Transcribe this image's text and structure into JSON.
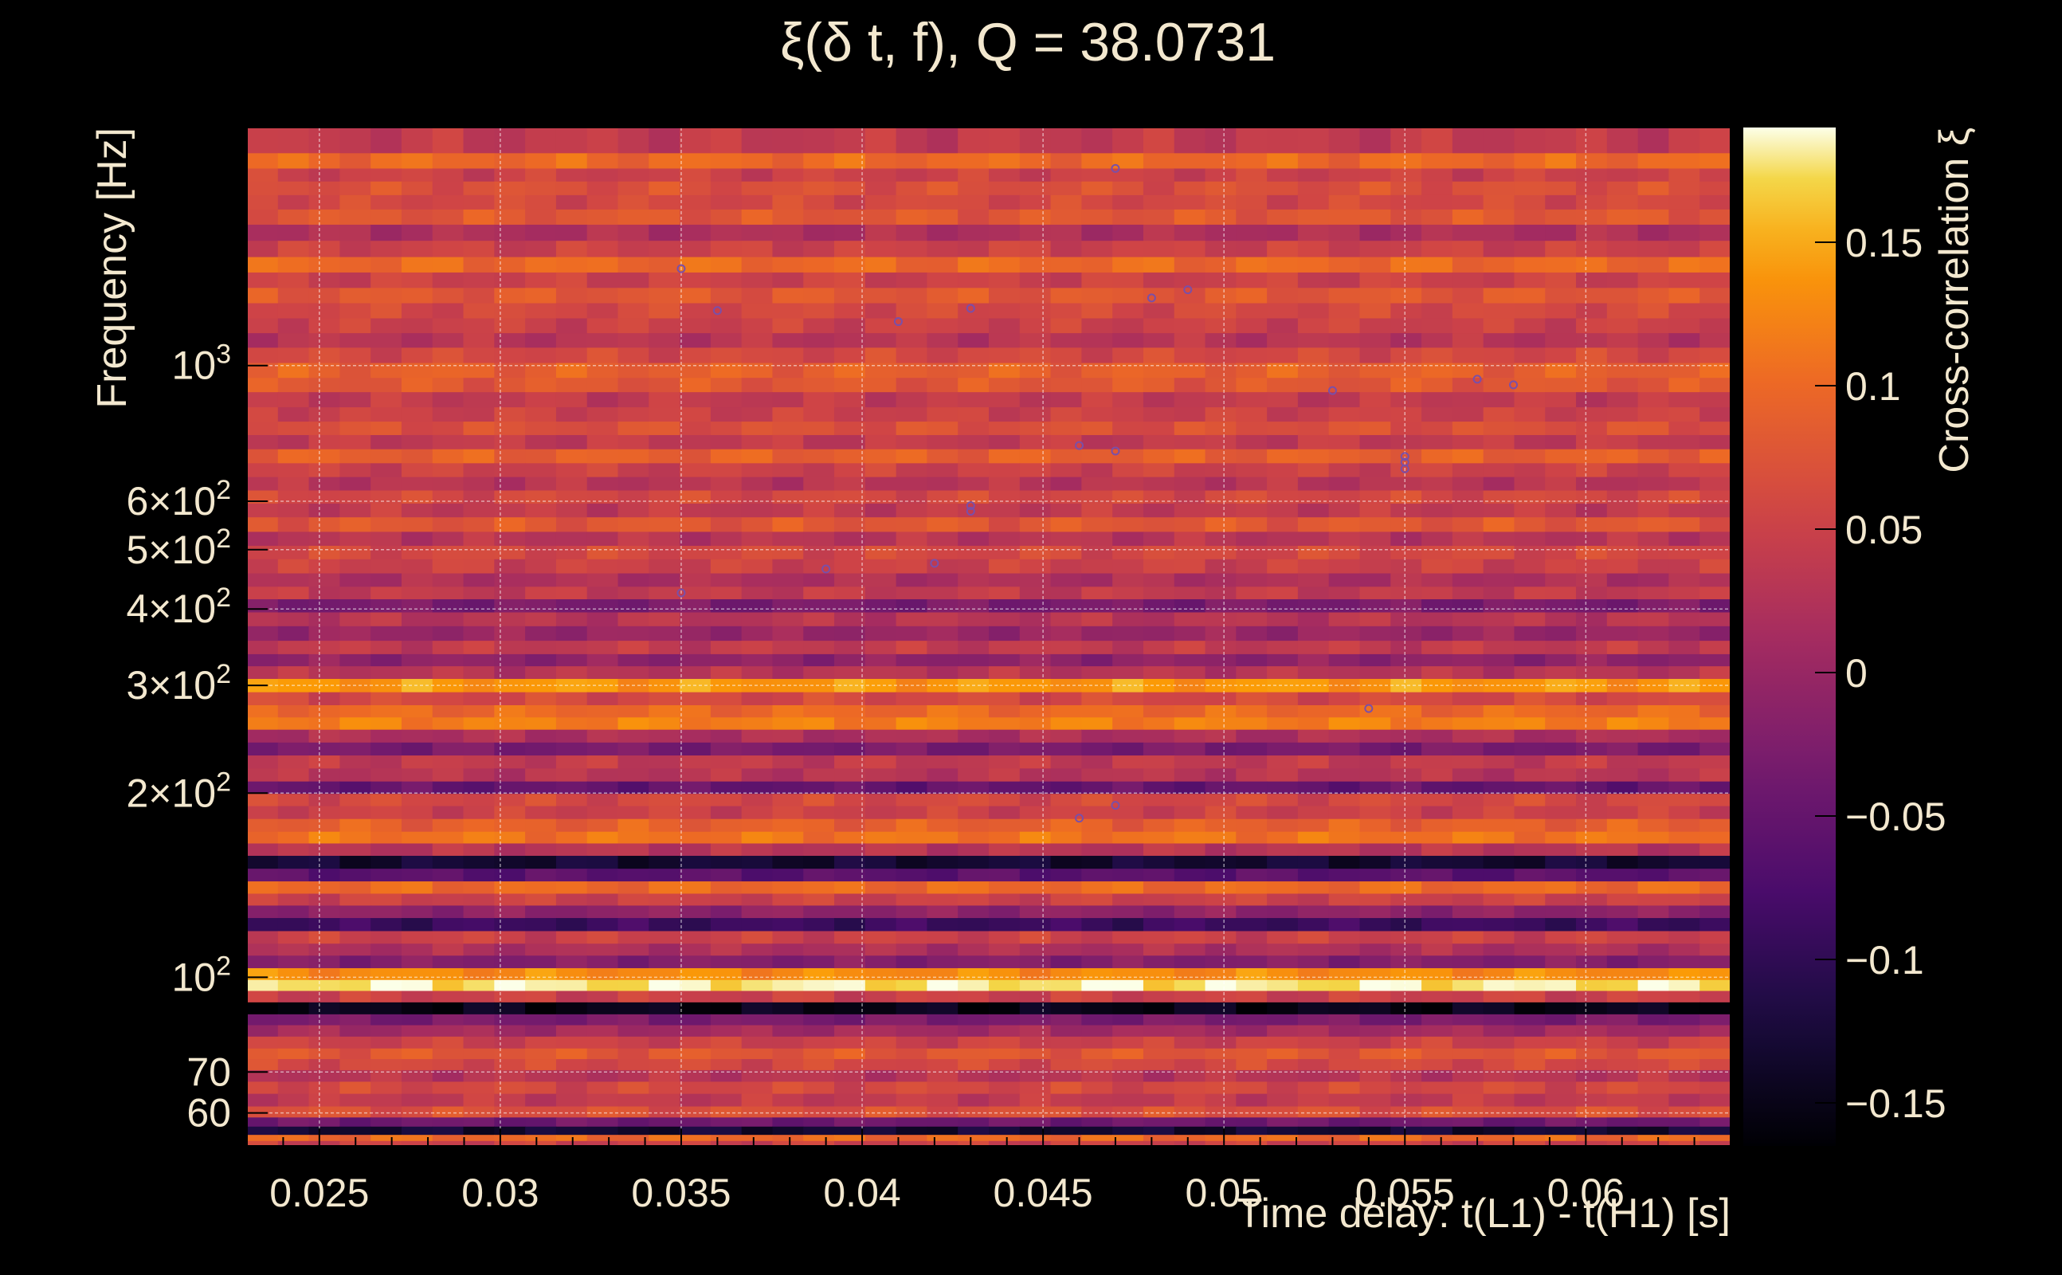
{
  "chart_data": {
    "type": "heatmap",
    "title": "ξ(δ t, f), Q = 38.0731",
    "xlabel": "Time delay: t(L1) - t(H1) [s]",
    "ylabel": "Frequency [Hz]",
    "colorbar_label": "Cross-correlation ξ",
    "xlim": [
      0.023,
      0.064
    ],
    "ylim": [
      53,
      2450
    ],
    "y_scale": "log",
    "x_ticks": [
      "0.025",
      "0.03",
      "0.035",
      "0.04",
      "0.045",
      "0.05",
      "0.055",
      "0.06"
    ],
    "x_tick_values": [
      0.025,
      0.03,
      0.035,
      0.04,
      0.045,
      0.05,
      0.055,
      0.06
    ],
    "y_ticks": [
      {
        "value": 1000,
        "base": "10",
        "exp": "3"
      },
      {
        "value": 600,
        "base": "6×10",
        "exp": "2"
      },
      {
        "value": 500,
        "base": "5×10",
        "exp": "2"
      },
      {
        "value": 400,
        "base": "4×10",
        "exp": "2"
      },
      {
        "value": 300,
        "base": "3×10",
        "exp": "2"
      },
      {
        "value": 200,
        "base": "2×10",
        "exp": "2"
      },
      {
        "value": 100,
        "base": "10",
        "exp": "2"
      },
      {
        "value": 70,
        "base": "70",
        "exp": ""
      },
      {
        "value": 60,
        "base": "60",
        "exp": ""
      }
    ],
    "colorbar_ticks": [
      "0.15",
      "0.1",
      "0.05",
      "0",
      "−0.05",
      "−0.1",
      "−0.15"
    ],
    "colorbar_tick_values": [
      0.15,
      0.1,
      0.05,
      0,
      -0.05,
      -0.1,
      -0.15
    ],
    "clim": [
      -0.165,
      0.19
    ],
    "colormap": "inferno",
    "grid": true,
    "bands": [
      {
        "f": 2300,
        "v": 0.04
      },
      {
        "f": 2150,
        "v": 0.1
      },
      {
        "f": 2050,
        "v": 0.05
      },
      {
        "f": 1950,
        "v": 0.07
      },
      {
        "f": 1850,
        "v": 0.06
      },
      {
        "f": 1750,
        "v": 0.08
      },
      {
        "f": 1650,
        "v": 0.02
      },
      {
        "f": 1550,
        "v": 0.05
      },
      {
        "f": 1460,
        "v": 0.1
      },
      {
        "f": 1380,
        "v": 0.05
      },
      {
        "f": 1300,
        "v": 0.08
      },
      {
        "f": 1230,
        "v": 0.06
      },
      {
        "f": 1160,
        "v": 0.05
      },
      {
        "f": 1100,
        "v": 0.03
      },
      {
        "f": 1040,
        "v": 0.06
      },
      {
        "f": 980,
        "v": 0.09
      },
      {
        "f": 930,
        "v": 0.08
      },
      {
        "f": 880,
        "v": 0.04
      },
      {
        "f": 830,
        "v": 0.05
      },
      {
        "f": 790,
        "v": 0.07
      },
      {
        "f": 750,
        "v": 0.04
      },
      {
        "f": 710,
        "v": 0.09
      },
      {
        "f": 675,
        "v": 0.05
      },
      {
        "f": 640,
        "v": 0.03
      },
      {
        "f": 610,
        "v": 0.06
      },
      {
        "f": 580,
        "v": 0.04
      },
      {
        "f": 550,
        "v": 0.08
      },
      {
        "f": 520,
        "v": 0.03
      },
      {
        "f": 495,
        "v": 0.06
      },
      {
        "f": 470,
        "v": 0.05
      },
      {
        "f": 445,
        "v": 0.02
      },
      {
        "f": 425,
        "v": 0.04
      },
      {
        "f": 405,
        "v": -0.03
      },
      {
        "f": 385,
        "v": 0.03
      },
      {
        "f": 365,
        "v": 0.0
      },
      {
        "f": 345,
        "v": 0.04
      },
      {
        "f": 330,
        "v": -0.01
      },
      {
        "f": 315,
        "v": 0.03
      },
      {
        "f": 300,
        "v": 0.14
      },
      {
        "f": 285,
        "v": 0.06
      },
      {
        "f": 272,
        "v": 0.1
      },
      {
        "f": 260,
        "v": 0.12
      },
      {
        "f": 248,
        "v": 0.02
      },
      {
        "f": 236,
        "v": -0.03
      },
      {
        "f": 225,
        "v": 0.04
      },
      {
        "f": 214,
        "v": 0.03
      },
      {
        "f": 204,
        "v": -0.05
      },
      {
        "f": 195,
        "v": 0.06
      },
      {
        "f": 186,
        "v": 0.05
      },
      {
        "f": 177,
        "v": 0.09
      },
      {
        "f": 169,
        "v": 0.11
      },
      {
        "f": 162,
        "v": 0.03
      },
      {
        "f": 154,
        "v": -0.13
      },
      {
        "f": 147,
        "v": -0.06
      },
      {
        "f": 140,
        "v": 0.1
      },
      {
        "f": 134,
        "v": 0.05
      },
      {
        "f": 128,
        "v": -0.01
      },
      {
        "f": 122,
        "v": -0.09
      },
      {
        "f": 116,
        "v": 0.05
      },
      {
        "f": 111,
        "v": 0.02
      },
      {
        "f": 106,
        "v": -0.02
      },
      {
        "f": 101,
        "v": 0.13
      },
      {
        "f": 97,
        "v": 0.18
      },
      {
        "f": 93,
        "v": 0.05
      },
      {
        "f": 89,
        "v": -0.15
      },
      {
        "f": 85,
        "v": -0.03
      },
      {
        "f": 82,
        "v": 0.01
      },
      {
        "f": 78,
        "v": 0.05
      },
      {
        "f": 75,
        "v": 0.08
      },
      {
        "f": 72,
        "v": 0.06
      },
      {
        "f": 69,
        "v": 0.03
      },
      {
        "f": 66,
        "v": 0.06
      },
      {
        "f": 63,
        "v": 0.04
      },
      {
        "f": 60,
        "v": 0.07
      },
      {
        "f": 58,
        "v": -0.04
      },
      {
        "f": 56,
        "v": -0.13
      },
      {
        "f": 54.5,
        "v": 0.1
      },
      {
        "f": 53.5,
        "v": 0.05
      }
    ],
    "markers": [
      {
        "x": 0.047,
        "f": 2100
      },
      {
        "x": 0.035,
        "f": 1440
      },
      {
        "x": 0.036,
        "f": 1230
      },
      {
        "x": 0.041,
        "f": 1180
      },
      {
        "x": 0.043,
        "f": 1240
      },
      {
        "x": 0.048,
        "f": 1290
      },
      {
        "x": 0.049,
        "f": 1330
      },
      {
        "x": 0.057,
        "f": 950
      },
      {
        "x": 0.058,
        "f": 930
      },
      {
        "x": 0.053,
        "f": 910
      },
      {
        "x": 0.046,
        "f": 740
      },
      {
        "x": 0.047,
        "f": 725
      },
      {
        "x": 0.055,
        "f": 710
      },
      {
        "x": 0.055,
        "f": 695
      },
      {
        "x": 0.055,
        "f": 678
      },
      {
        "x": 0.043,
        "f": 590
      },
      {
        "x": 0.043,
        "f": 578
      },
      {
        "x": 0.039,
        "f": 465
      },
      {
        "x": 0.042,
        "f": 475
      },
      {
        "x": 0.035,
        "f": 425
      },
      {
        "x": 0.054,
        "f": 275
      },
      {
        "x": 0.047,
        "f": 191
      },
      {
        "x": 0.046,
        "f": 182
      }
    ]
  }
}
